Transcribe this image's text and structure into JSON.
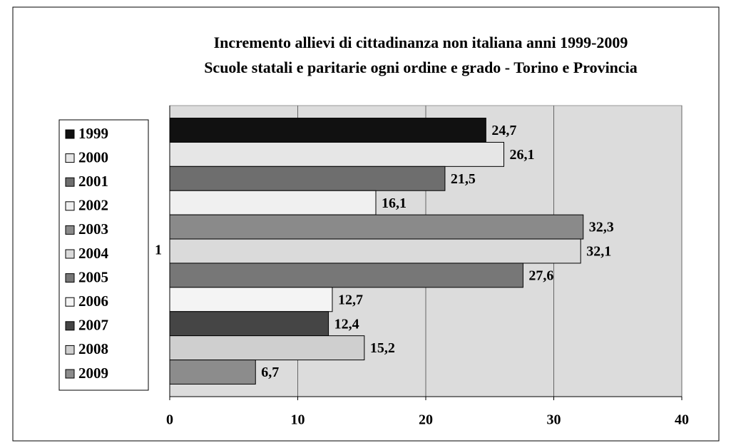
{
  "chart_data": {
    "type": "bar",
    "orientation": "horizontal",
    "title": "Incremento allievi di cittadinanza non italiana anni 1999-2009",
    "subtitle": "Scuole statali e paritarie ogni ordine e grado - Torino e Provincia",
    "categories": [
      "1"
    ],
    "series": [
      {
        "name": "1999",
        "color": "#111111",
        "values": [
          24.7
        ],
        "value_labels": [
          "24,7"
        ]
      },
      {
        "name": "2000",
        "color": "#e6e6e6",
        "values": [
          26.1
        ],
        "value_labels": [
          "26,1"
        ]
      },
      {
        "name": "2001",
        "color": "#6e6e6e",
        "values": [
          21.5
        ],
        "value_labels": [
          "21,5"
        ]
      },
      {
        "name": "2002",
        "color": "#f0f0f0",
        "values": [
          16.1
        ],
        "value_labels": [
          "16,1"
        ]
      },
      {
        "name": "2003",
        "color": "#8a8a8a",
        "values": [
          32.3
        ],
        "value_labels": [
          "32,3"
        ]
      },
      {
        "name": "2004",
        "color": "#dadada",
        "values": [
          32.1
        ],
        "value_labels": [
          "32,1"
        ]
      },
      {
        "name": "2005",
        "color": "#777777",
        "values": [
          27.6
        ],
        "value_labels": [
          "27,6"
        ]
      },
      {
        "name": "2006",
        "color": "#f4f4f4",
        "values": [
          12.7
        ],
        "value_labels": [
          "12,7"
        ]
      },
      {
        "name": "2007",
        "color": "#454545",
        "values": [
          12.4
        ],
        "value_labels": [
          "12,4"
        ]
      },
      {
        "name": "2008",
        "color": "#cfcfcf",
        "values": [
          15.2
        ],
        "value_labels": [
          "15,2"
        ]
      },
      {
        "name": "2009",
        "color": "#8c8c8c",
        "values": [
          6.7
        ],
        "value_labels": [
          "6,7"
        ]
      }
    ],
    "xlim": [
      0,
      40
    ],
    "xticks": [
      0,
      10,
      20,
      30,
      40
    ],
    "grid": true,
    "legend": "left"
  }
}
